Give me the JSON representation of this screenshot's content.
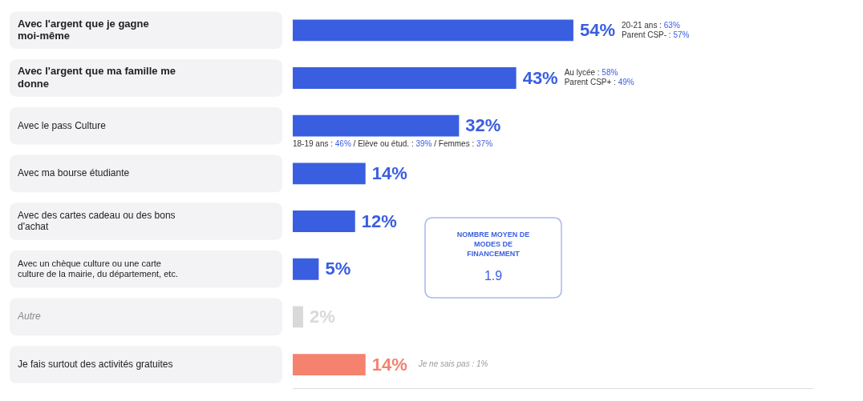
{
  "chart_data": {
    "type": "bar",
    "orientation": "horizontal",
    "categories": [
      "Avec l'argent que je gagne moi-même",
      "Avec l'argent que ma famille me donne",
      "Avec le pass Culture",
      "Avec ma bourse étudiante",
      "Avec des cartes cadeau ou des bons d'achat",
      "Avec un chèque culture ou une carte culture de la mairie, du département, etc.",
      "Autre",
      "Je fais surtout des activités gratuites"
    ],
    "values": [
      54,
      43,
      32,
      14,
      12,
      5,
      2,
      14
    ],
    "value_labels": [
      "54%",
      "43%",
      "32%",
      "14%",
      "12%",
      "5%",
      "2%",
      "14%"
    ],
    "colors": [
      "#3a5ee0",
      "#3a5ee0",
      "#3a5ee0",
      "#3a5ee0",
      "#3a5ee0",
      "#3a5ee0",
      "#d9d9d9",
      "#f4826f"
    ],
    "xlim": [
      0,
      100
    ],
    "grid": false,
    "data_labels": true,
    "tick_labels": "y",
    "annotations": [
      {
        "category": "Avec l'argent que je gagne moi-même",
        "lines": [
          "20-21 ans : 63%",
          "Parent CSP- : 57%"
        ]
      },
      {
        "category": "Avec l'argent que ma famille me donne",
        "lines": [
          "Au lycée : 58%",
          "Parent CSP+ : 49%"
        ]
      },
      {
        "category": "Avec le pass Culture",
        "lines": [
          "18-19 ans : 46% / Elève ou étud. : 39% / Femmes : 37%"
        ]
      },
      {
        "category": "Je fais surtout des activités gratuites",
        "lines": [
          "Je ne sais pas : 1%"
        ]
      }
    ],
    "summary": {
      "label": "NOMBRE MOYEN DE MODES DE FINANCEMENT",
      "value": 1.9
    }
  }
}
